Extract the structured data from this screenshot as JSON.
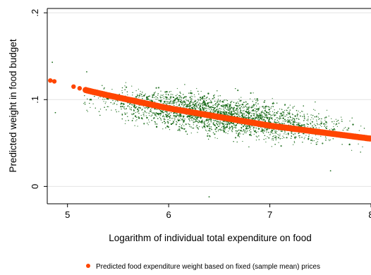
{
  "chart_data": {
    "type": "scatter",
    "xlabel": "Logarithm of individual total expenditure on food",
    "ylabel": "Predicted weight in food budget",
    "xlim": [
      4.8,
      8.0
    ],
    "ylim": [
      -0.02,
      0.205
    ],
    "x_ticks": [
      5,
      6,
      7,
      8
    ],
    "x_tick_labels": [
      "5",
      "6",
      "7",
      "8"
    ],
    "y_ticks": [
      0,
      0.1,
      0.2
    ],
    "y_tick_labels": [
      "0",
      ".1",
      ".2"
    ],
    "grid": "horizontal",
    "legend_position": "bottom",
    "series": [
      {
        "name": "",
        "color": "#1a6b1a",
        "style": "dense-small-dots",
        "cloud": {
          "x_range": [
            4.9,
            8.0
          ],
          "center_x": [
            5.3,
            6.5,
            7.5,
            8.0
          ],
          "center_y": [
            0.1,
            0.082,
            0.068,
            0.062
          ],
          "spread_y": [
            0.018,
            0.02,
            0.018,
            0.016
          ]
        },
        "outliers": [
          {
            "x": 4.85,
            "y": 0.143
          },
          {
            "x": 5.19,
            "y": 0.132
          },
          {
            "x": 4.88,
            "y": 0.085
          },
          {
            "x": 6.4,
            "y": -0.012
          },
          {
            "x": 7.6,
            "y": 0.018
          }
        ]
      },
      {
        "name": "Predicted food expenditure weight based on fixed (sample mean) prices",
        "color": "#ff4500",
        "x": [
          4.83,
          4.87,
          5.06,
          5.12,
          5.18,
          5.25,
          5.4,
          5.6,
          5.8,
          6.0,
          6.2,
          6.4,
          6.6,
          6.8,
          7.0,
          7.2,
          7.4,
          7.6,
          7.8,
          8.0
        ],
        "y": [
          0.122,
          0.121,
          0.115,
          0.113,
          0.111,
          0.109,
          0.105,
          0.1,
          0.095,
          0.09,
          0.086,
          0.082,
          0.078,
          0.074,
          0.07,
          0.067,
          0.064,
          0.061,
          0.058,
          0.055
        ]
      }
    ]
  }
}
